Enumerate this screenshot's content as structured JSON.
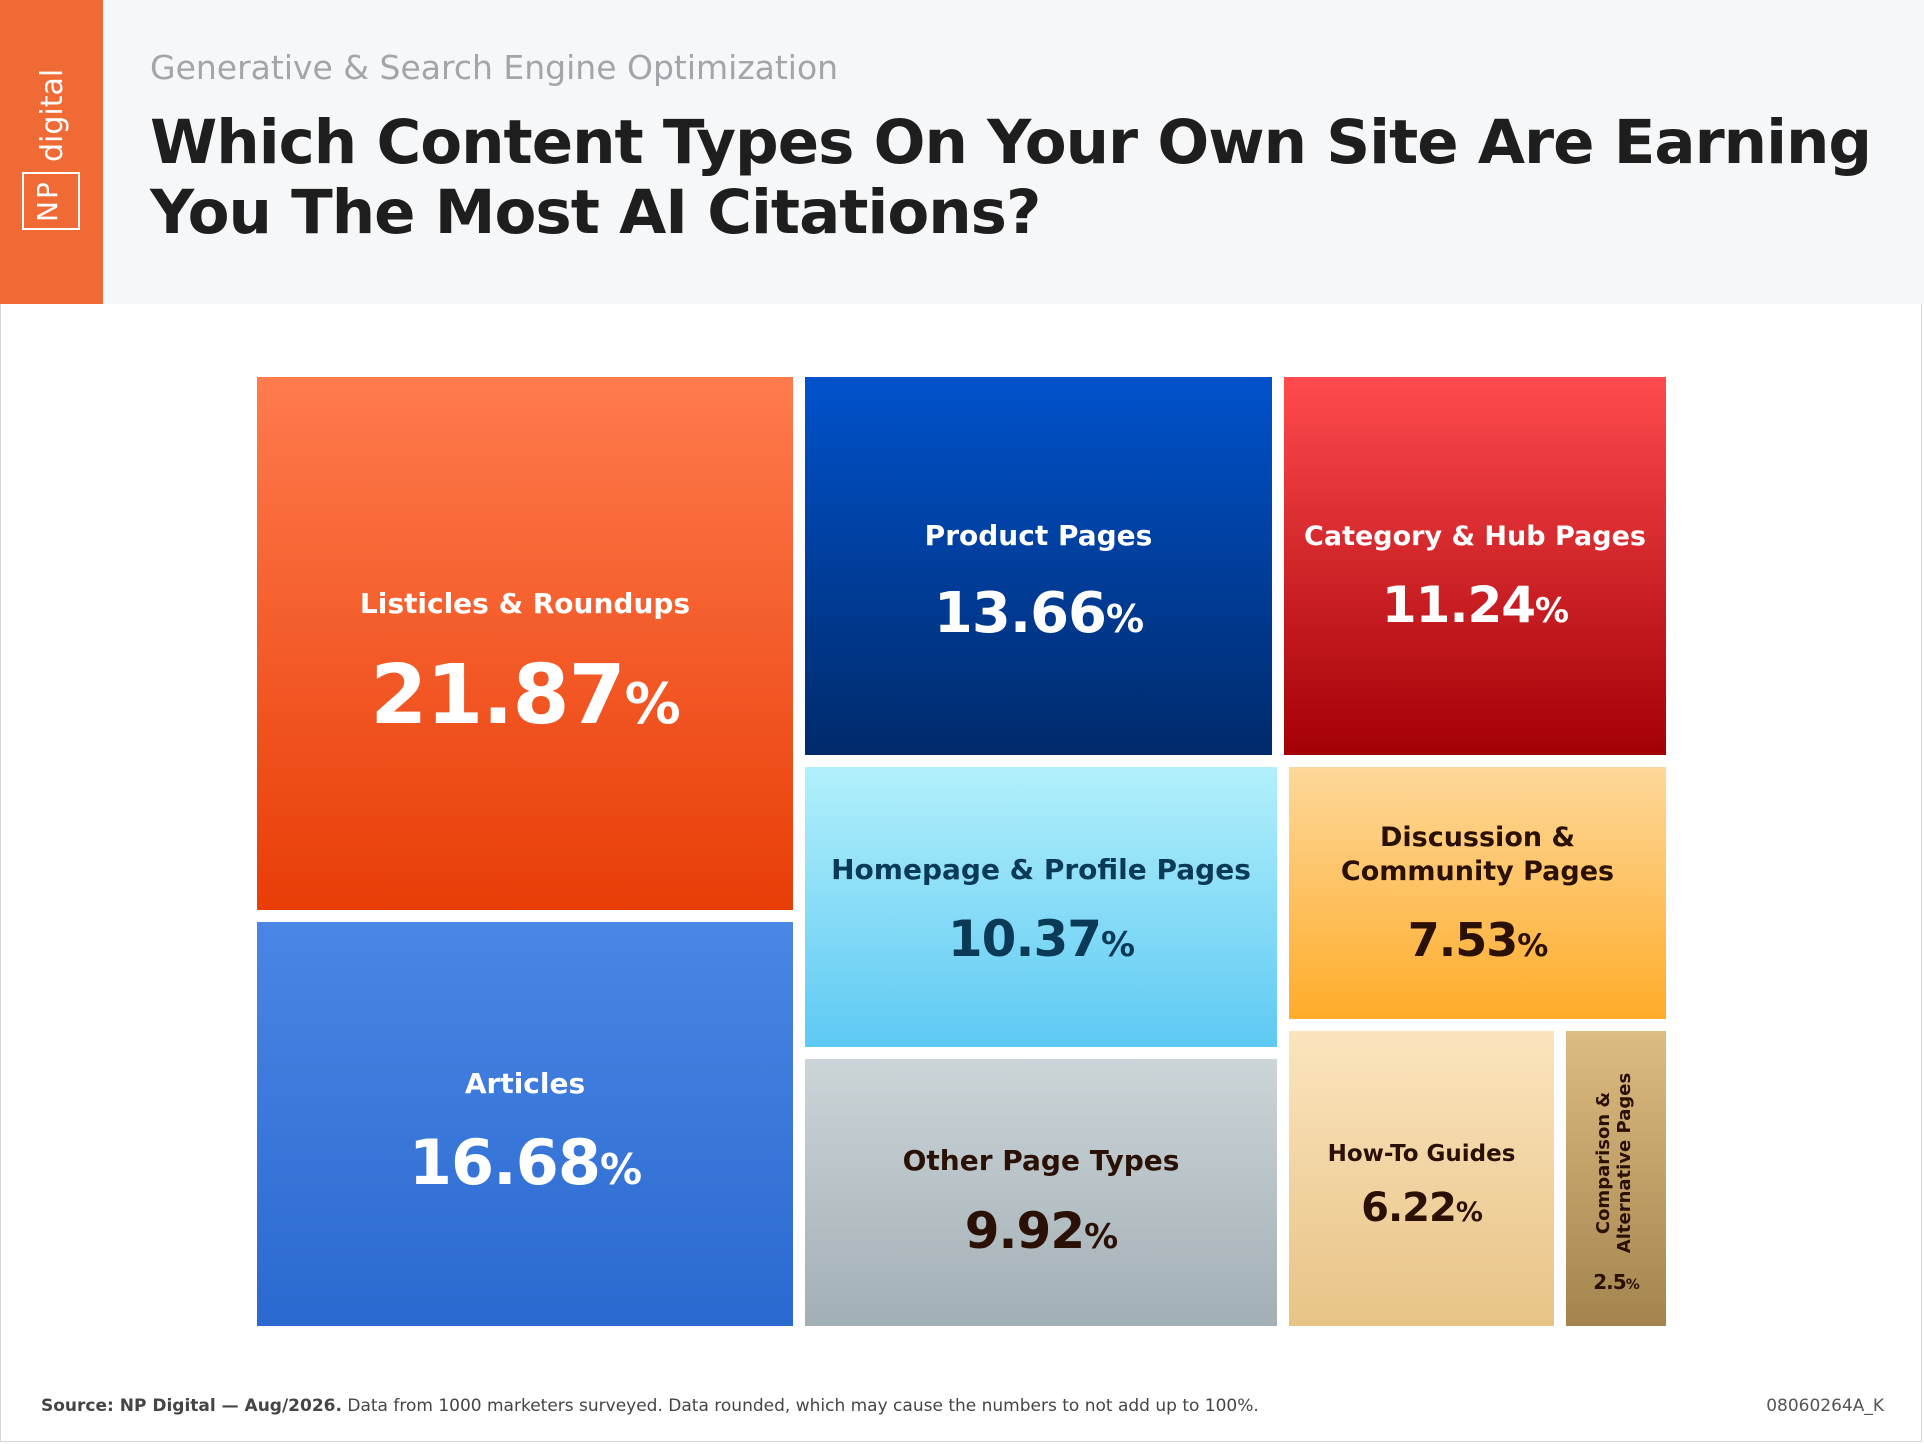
{
  "brand": {
    "name": "NP digital",
    "np": "NP",
    "digital": "digital"
  },
  "header": {
    "subtitle": "Generative & Search Engine Optimization",
    "title": "Which Content Types On Your Own Site Are Earning You The Most AI Citations?"
  },
  "chart_data": {
    "type": "treemap",
    "unit": "%",
    "items": [
      {
        "label": "Listicles & Roundups",
        "value": 21.87,
        "value_text": "21.87",
        "color_top": "#ff7b4d",
        "color_bottom": "#e83d07",
        "text_color": "#ffffff"
      },
      {
        "label": "Articles",
        "value": 16.68,
        "value_text": "16.68",
        "color_top": "#4a86e4",
        "color_bottom": "#2a69cf",
        "text_color": "#ffffff"
      },
      {
        "label": "Product Pages",
        "value": 13.66,
        "value_text": "13.66",
        "color_top": "#0052cc",
        "color_bottom": "#002a6b",
        "text_color": "#ffffff"
      },
      {
        "label": "Category & Hub Pages",
        "value": 11.24,
        "value_text": "11.24",
        "color_top": "#ff4b4e",
        "color_bottom": "#a30006",
        "text_color": "#ffffff"
      },
      {
        "label": "Homepage & Profile Pages",
        "value": 10.37,
        "value_text": "10.37",
        "color_top": "#b2f0fb",
        "color_bottom": "#5ec9f3",
        "text_color": "#0b3a57"
      },
      {
        "label": "Discussion & Community Pages",
        "value": 7.53,
        "value_text": "7.53",
        "color_top": "#fdd89a",
        "color_bottom": "#ffac2a",
        "text_color": "#2a1005"
      },
      {
        "label": "Other Page Types",
        "value": 9.92,
        "value_text": "9.92",
        "color_top": "#ccd5d8",
        "color_bottom": "#a2afb5",
        "text_color": "#2a1005"
      },
      {
        "label": "How-To Guides",
        "value": 6.22,
        "value_text": "6.22",
        "color_top": "#fbe4bd",
        "color_bottom": "#e7c386",
        "text_color": "#2a1005"
      },
      {
        "label": "Comparison & Alternative Pages",
        "value": 2.5,
        "value_text": "2.5",
        "color_top": "#dcbc80",
        "color_bottom": "#a4844e",
        "text_color": "#2a1005"
      }
    ]
  },
  "footer": {
    "source_label": "Source: NP Digital — Aug/2026.",
    "note": " Data from 1000 marketers surveyed. Data rounded, which may cause the numbers to not add up to 100%.",
    "code": "08060264A_K"
  }
}
